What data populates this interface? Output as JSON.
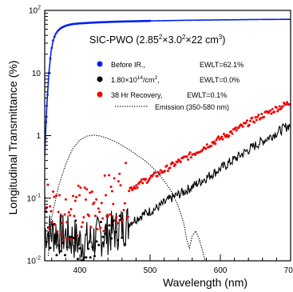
{
  "chart_data": {
    "type": "line",
    "title": "SIC-PWO (2.85²×3.0²×22 cm³)",
    "title_parts": {
      "t1": "SIC-PWO (2.85",
      "t2": "2",
      "t3": "×3.0",
      "t4": "2",
      "t5": "×22 cm",
      "t6": "3",
      "t7": ")"
    },
    "xlabel": "Wavelength (nm)",
    "ylabel": "Longitudinal Transmittance (%)",
    "xlim": [
      350,
      700
    ],
    "ylim": [
      0.01,
      100
    ],
    "yscale": "log",
    "x_ticks": [
      {
        "value": 400,
        "label": "400"
      },
      {
        "value": 500,
        "label": "500"
      },
      {
        "value": 600,
        "label": "600"
      },
      {
        "value": 700,
        "label": "700"
      }
    ],
    "y_ticks": [
      {
        "value": 0.01,
        "base": "10",
        "exp": "-2"
      },
      {
        "value": 0.1,
        "base": "10",
        "exp": "-1"
      },
      {
        "value": 1,
        "base": "1",
        "exp": ""
      },
      {
        "value": 10,
        "base": "10",
        "exp": ""
      },
      {
        "value": 100,
        "base": "10",
        "exp": "2"
      }
    ],
    "legend": {
      "position": "upper-right",
      "entries": [
        {
          "label": "Before IR.,",
          "value": "EWLT=62.1%",
          "color": "#0022ee",
          "marker": "circle"
        },
        {
          "label_parts": {
            "a": "1.80×10",
            "b": "14",
            "c": "/cm",
            "d": "2",
            "e": ","
          },
          "value": "EWLT=0.0%",
          "color": "#000000",
          "marker": "circle"
        },
        {
          "label": "38 Hr Recovery,",
          "value": "EWLT=0.1%",
          "color": "#ee0000",
          "marker": "circle"
        },
        {
          "label": "Emission (350-580 nm)",
          "value": "",
          "color": "#000000",
          "marker": "dotted-line"
        }
      ]
    },
    "series": [
      {
        "key": "before",
        "color": "#0022ee",
        "style": "line-markers",
        "x": [
          350,
          353,
          356,
          359,
          362,
          365,
          368,
          371,
          374,
          377,
          380,
          385,
          390,
          400,
          420,
          450,
          500,
          550,
          600,
          650,
          700
        ],
        "y": [
          0.5,
          3,
          10,
          22,
          33,
          41,
          46,
          50,
          53,
          55,
          57,
          59,
          60.5,
          62,
          64,
          66,
          68,
          69.5,
          70.5,
          71.5,
          72
        ]
      },
      {
        "key": "irradiated",
        "color": "#000000",
        "style": "noisy-line",
        "x": [
          350,
          380,
          400,
          410,
          430,
          450,
          470,
          490,
          510,
          530,
          550,
          570,
          590,
          610,
          630,
          650,
          670,
          690,
          700
        ],
        "y": [
          0.03,
          0.025,
          0.02,
          0.02,
          0.025,
          0.03,
          0.04,
          0.055,
          0.07,
          0.1,
          0.13,
          0.18,
          0.25,
          0.35,
          0.5,
          0.7,
          0.95,
          1.3,
          1.5
        ]
      },
      {
        "key": "recovery",
        "color": "#ee0000",
        "style": "markers",
        "x": [
          350,
          380,
          400,
          420,
          440,
          460,
          480,
          500,
          520,
          540,
          560,
          580,
          600,
          620,
          640,
          660,
          680,
          700
        ],
        "y": [
          0.08,
          0.06,
          0.06,
          0.07,
          0.09,
          0.12,
          0.16,
          0.21,
          0.28,
          0.38,
          0.5,
          0.68,
          0.9,
          1.2,
          1.6,
          2.1,
          2.7,
          3.4
        ]
      },
      {
        "key": "emission",
        "color": "#000000",
        "style": "dotted",
        "x": [
          355,
          360,
          365,
          370,
          380,
          390,
          400,
          410,
          420,
          430,
          440,
          450,
          460,
          470,
          480,
          490,
          500,
          510,
          520,
          530,
          540,
          548,
          552,
          556,
          560,
          565,
          570,
          575,
          578
        ],
        "y": [
          0.012,
          0.05,
          0.09,
          0.16,
          0.35,
          0.62,
          0.85,
          0.98,
          1.02,
          0.98,
          0.9,
          0.8,
          0.7,
          0.6,
          0.5,
          0.42,
          0.34,
          0.26,
          0.19,
          0.13,
          0.075,
          0.04,
          0.022,
          0.016,
          0.025,
          0.03,
          0.022,
          0.014,
          0.01
        ]
      }
    ]
  }
}
